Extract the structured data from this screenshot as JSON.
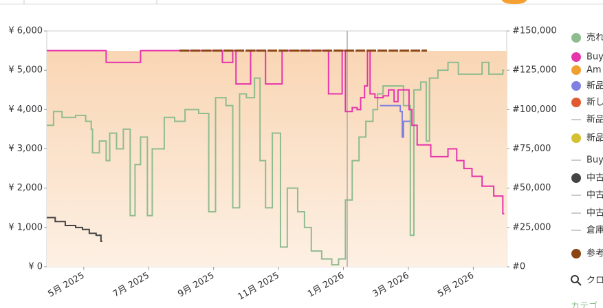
{
  "chart_data": {
    "type": "line",
    "step": true,
    "xlim": [
      3.86,
      18.03
    ],
    "xticks": [
      {
        "value": 5,
        "label": "5月 2025"
      },
      {
        "value": 7,
        "label": "7月 2025"
      },
      {
        "value": 9,
        "label": "9月 2025"
      },
      {
        "value": 11,
        "label": "11月 2025"
      },
      {
        "value": 13,
        "label": "1月 2026"
      },
      {
        "value": 15,
        "label": "3月 2026"
      },
      {
        "value": 17,
        "label": "5月 2026"
      }
    ],
    "ylim": [
      0,
      6000
    ],
    "yticks": [
      {
        "value": 0,
        "label": "¥ 0"
      },
      {
        "value": 1000,
        "label": "¥ 1,000"
      },
      {
        "value": 2000,
        "label": "¥ 2,000"
      },
      {
        "value": 3000,
        "label": "¥ 3,000"
      },
      {
        "value": 4000,
        "label": "¥ 4,000"
      },
      {
        "value": 5000,
        "label": "¥ 5,000"
      },
      {
        "value": 6000,
        "label": "¥ 6,000"
      }
    ],
    "y2lim": [
      0,
      150000
    ],
    "y2ticks": [
      {
        "value": 0,
        "label": "#0"
      },
      {
        "value": 25000,
        "label": "#25,000"
      },
      {
        "value": 50000,
        "label": "#50,000"
      },
      {
        "value": 75000,
        "label": "#75,000"
      },
      {
        "value": 100000,
        "label": "#100,000"
      },
      {
        "value": 125000,
        "label": "#125,000"
      },
      {
        "value": 150000,
        "label": "#150,000"
      }
    ],
    "series": [
      {
        "name": "売れ",
        "color": "#8fbc8f",
        "marker": "circle",
        "axis": "y2",
        "x": [
          3.86,
          4.07,
          4.33,
          4.75,
          5.06,
          5.23,
          5.27,
          5.48,
          5.69,
          5.8,
          6.01,
          6.22,
          6.43,
          6.58,
          6.75,
          6.96,
          7.11,
          7.48,
          7.8,
          8.12,
          8.54,
          8.85,
          9.06,
          9.38,
          9.59,
          9.8,
          10.01,
          10.26,
          10.43,
          10.6,
          10.81,
          11.06,
          11.27,
          11.59,
          11.8,
          12.01,
          12.33,
          12.64,
          12.85,
          13.06,
          13.27,
          13.48,
          13.69,
          13.91,
          14.05,
          14.22,
          14.64,
          14.85,
          15.06,
          15.17,
          15.38,
          15.55,
          15.65,
          15.91,
          16.22,
          16.54,
          16.96,
          17.27,
          17.48,
          17.91
        ],
        "values": [
          90000,
          98750,
          95000,
          96250,
          92500,
          87500,
          72500,
          80000,
          67500,
          85000,
          75000,
          87500,
          32500,
          65000,
          82500,
          32500,
          75000,
          95000,
          92500,
          100000,
          97500,
          35000,
          107500,
          102500,
          37500,
          110000,
          107500,
          120000,
          67500,
          37500,
          85000,
          12500,
          50000,
          35000,
          25000,
          10000,
          5000,
          1250,
          5000,
          42500,
          67500,
          82500,
          92500,
          100000,
          110000,
          115000,
          115000,
          102500,
          20000,
          112500,
          117500,
          80000,
          120000,
          125000,
          130000,
          122500,
          122500,
          130000,
          122500,
          125000
        ]
      },
      {
        "name": "Buy",
        "color": "#e535ab",
        "marker": "circle",
        "x": [
          3.86,
          5.69,
          6.75,
          9.27,
          9.59,
          9.69,
          10.14,
          10.6,
          11.11,
          12.54,
          12.96,
          13.06,
          13.27,
          13.42,
          13.53,
          13.65,
          13.74,
          13.82,
          13.97,
          14.22,
          14.39,
          14.56,
          14.68,
          15.02,
          15.11,
          15.27,
          15.69,
          16.22,
          16.49,
          16.71,
          16.96,
          17.27,
          17.63,
          17.91
        ],
        "values": [
          5500,
          5200,
          5500,
          5200,
          5500,
          4650,
          5500,
          4650,
          5500,
          4400,
          5500,
          3950,
          4050,
          4000,
          4300,
          4600,
          5500,
          4400,
          4300,
          4350,
          4500,
          4200,
          4500,
          4000,
          3600,
          3100,
          2800,
          3000,
          2700,
          2500,
          2300,
          2050,
          1800,
          1350
        ]
      },
      {
        "name": "Am",
        "color": "#f0a030",
        "marker": "circle"
      },
      {
        "name": "新品",
        "color": "#8080e0",
        "marker": "circle",
        "x": [
          14.12,
          14.54,
          14.75,
          14.81,
          14.85,
          15.02
        ],
        "values": [
          4100,
          4100,
          3950,
          3300,
          3700,
          3700
        ]
      },
      {
        "name": "新し",
        "color": "#e05a30",
        "marker": "circle"
      },
      {
        "name": "新品",
        "color": "#cccccc",
        "marker": "line"
      },
      {
        "name": "新品",
        "color": "#d4c030",
        "marker": "circle"
      },
      {
        "name": "Buy",
        "color": "#cccccc",
        "marker": "line"
      },
      {
        "name": "中古",
        "color": "#444444",
        "marker": "circle",
        "x": [
          3.86,
          4.12,
          4.43,
          4.75,
          4.96,
          5.17,
          5.38,
          5.53
        ],
        "values": [
          1250,
          1150,
          1050,
          1000,
          950,
          850,
          800,
          650
        ]
      },
      {
        "name": "中古",
        "color": "#cccccc",
        "marker": "line"
      },
      {
        "name": "中古",
        "color": "#cccccc",
        "marker": "line"
      },
      {
        "name": "倉庫",
        "color": "#cccccc",
        "marker": "line"
      },
      {
        "name": "参考",
        "color": "#8b4513",
        "marker": "circle",
        "dashed": true,
        "x": [
          7.95,
          15.53
        ],
        "values": [
          5500,
          5500
        ]
      }
    ],
    "search_label": "クロ",
    "category_label": "カテゴ"
  }
}
